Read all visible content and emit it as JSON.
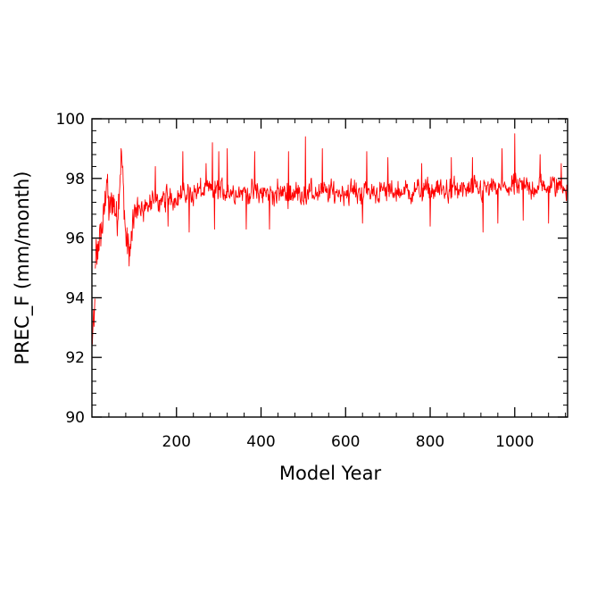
{
  "chart_data": {
    "type": "line",
    "title": "",
    "xlabel": "Model Year",
    "ylabel": "PREC_F (mm/month)",
    "xlim": [
      0,
      1125
    ],
    "ylim": [
      90,
      100
    ],
    "x_major_ticks": [
      200,
      400,
      600,
      800,
      1000
    ],
    "x_tick_labels": [
      "200",
      "400",
      "600",
      "800",
      "1000"
    ],
    "x_minor_step": 40,
    "y_major_ticks": [
      90,
      92,
      94,
      96,
      98,
      100
    ],
    "y_tick_labels": [
      "90",
      "92",
      "94",
      "96",
      "98",
      "100"
    ],
    "y_minor_step": 0.4,
    "grid": false,
    "legend": "none",
    "series": [
      {
        "color": "#ff0000",
        "x_start": 1,
        "x_step": 1,
        "x_end": 1125,
        "initial_points": [
          [
            1,
            92.4
          ],
          [
            2,
            92.9
          ],
          [
            3,
            93.2
          ],
          [
            4,
            93.5
          ],
          [
            5,
            93.0
          ],
          [
            10,
            95.6
          ],
          [
            12,
            95.3
          ],
          [
            15,
            95.8
          ],
          [
            20,
            96.1
          ],
          [
            25,
            96.4
          ],
          [
            30,
            97.0
          ],
          [
            35,
            98.1
          ],
          [
            40,
            96.9
          ],
          [
            50,
            97.3
          ],
          [
            60,
            96.6
          ],
          [
            70,
            98.9
          ],
          [
            80,
            96.0
          ],
          [
            90,
            95.5
          ],
          [
            100,
            96.8
          ]
        ],
        "trend_points": [
          [
            100,
            96.9
          ],
          [
            150,
            97.2
          ],
          [
            200,
            97.4
          ],
          [
            250,
            97.55
          ],
          [
            300,
            97.6
          ],
          [
            400,
            97.5
          ],
          [
            500,
            97.5
          ],
          [
            600,
            97.55
          ],
          [
            700,
            97.55
          ],
          [
            800,
            97.6
          ],
          [
            900,
            97.6
          ],
          [
            1000,
            97.7
          ],
          [
            1125,
            97.75
          ]
        ],
        "noise_amplitude": 0.55,
        "peaks": [
          [
            70,
            98.9
          ],
          [
            150,
            98.4
          ],
          [
            215,
            98.9
          ],
          [
            270,
            98.5
          ],
          [
            285,
            99.2
          ],
          [
            300,
            98.9
          ],
          [
            320,
            99.0
          ],
          [
            385,
            98.9
          ],
          [
            465,
            98.9
          ],
          [
            505,
            99.4
          ],
          [
            545,
            99.0
          ],
          [
            650,
            98.9
          ],
          [
            700,
            98.7
          ],
          [
            780,
            98.5
          ],
          [
            850,
            98.7
          ],
          [
            900,
            98.7
          ],
          [
            970,
            99.0
          ],
          [
            1000,
            99.5
          ],
          [
            1060,
            98.8
          ],
          [
            1110,
            98.5
          ]
        ],
        "troughs": [
          [
            90,
            95.4
          ],
          [
            180,
            96.4
          ],
          [
            230,
            96.2
          ],
          [
            290,
            96.3
          ],
          [
            365,
            96.3
          ],
          [
            420,
            96.3
          ],
          [
            505,
            96.1
          ],
          [
            545,
            96.5
          ],
          [
            640,
            96.5
          ],
          [
            800,
            96.4
          ],
          [
            925,
            96.2
          ],
          [
            960,
            96.5
          ],
          [
            1020,
            96.6
          ],
          [
            1080,
            96.5
          ],
          [
            1110,
            96.6
          ]
        ]
      }
    ]
  }
}
